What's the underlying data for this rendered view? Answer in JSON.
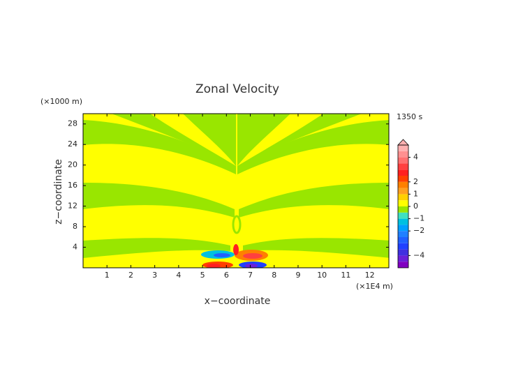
{
  "chart_data": {
    "type": "contour",
    "title": "Zonal Velocity",
    "x_label": "x−coordinate",
    "y_label": "z−coordinate",
    "x_unit": "(×1E4 m)",
    "y_unit": "(×1000 m)",
    "time_label": "1350 s",
    "xlim": [
      0,
      12.8
    ],
    "xticks": [
      1,
      2,
      3,
      4,
      5,
      6,
      7,
      8,
      9,
      10,
      11,
      12
    ],
    "ylim": [
      0,
      30
    ],
    "yticks": [
      4,
      8,
      12,
      16,
      20,
      24,
      28
    ],
    "colorbar": {
      "lim": [
        -5,
        5
      ],
      "levels": [
        -5,
        -4.5,
        -4,
        -3.5,
        -3,
        -2.5,
        -2,
        -1.5,
        -1,
        -0.5,
        0,
        0.5,
        1,
        1.5,
        2,
        2.5,
        3,
        3.5,
        4,
        4.5,
        5
      ],
      "colors": [
        "#8000c0",
        "#6a20d8",
        "#4030e0",
        "#2040ff",
        "#2060ff",
        "#2080ff",
        "#00a0ff",
        "#00c0e0",
        "#40e0c0",
        "#99e600",
        "#ffff00",
        "#ffd000",
        "#ffa020",
        "#ff8000",
        "#ff4000",
        "#ff2020",
        "#ff4040",
        "#ff7070",
        "#ff9090",
        "#ffb0b0"
      ],
      "ticks": [
        {
          "value": -4,
          "label": "−4"
        },
        {
          "value": -2,
          "label": "−2"
        },
        {
          "value": -1,
          "label": "−1"
        },
        0,
        1,
        2,
        4
      ]
    }
  }
}
